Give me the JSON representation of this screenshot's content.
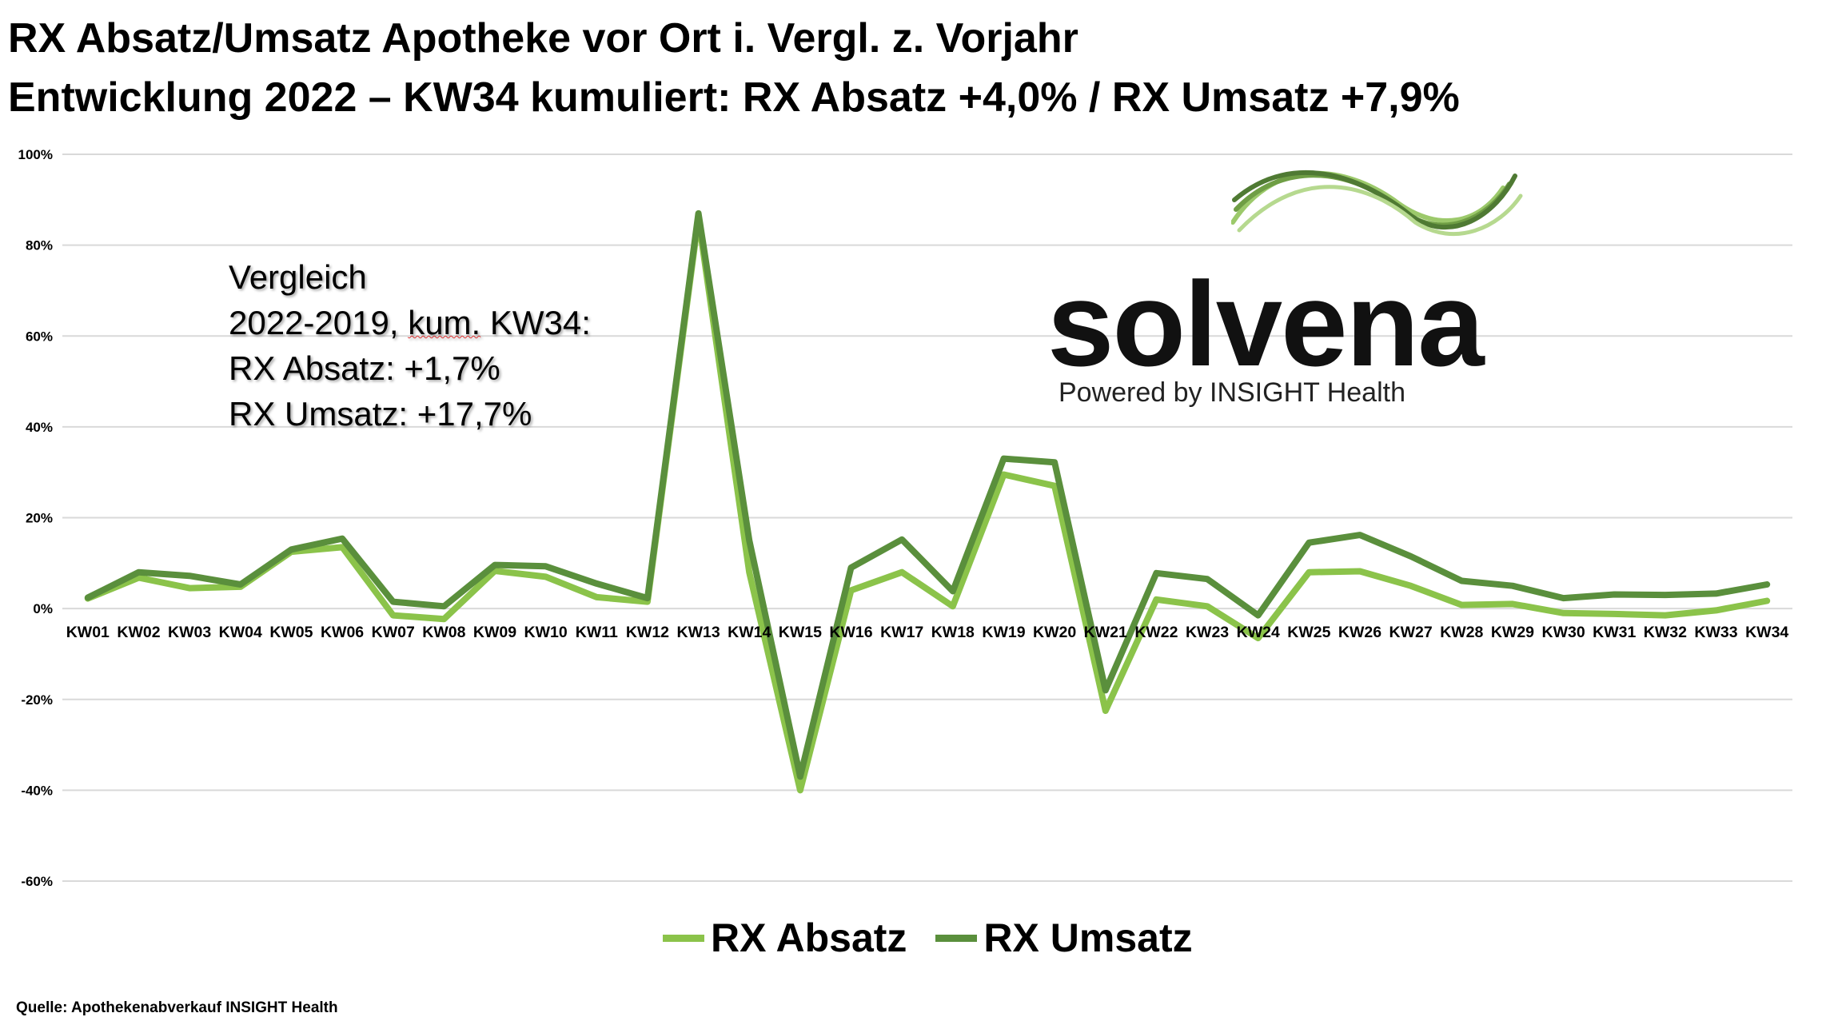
{
  "header": {
    "title_line1": "RX Absatz/Umsatz Apotheke vor Ort i. Vergl. z. Vorjahr",
    "title_line2": "Entwicklung 2022 – KW34 kumuliert: RX Absatz +4,0% / RX Umsatz +7,9%"
  },
  "annotation": {
    "line1": "Vergleich",
    "line2_pre": "2022-2019, ",
    "line2_wavy": "kum.",
    "line2_post": " KW34:",
    "line3": "RX Absatz:   +1,7%",
    "line4": "RX Umsatz: +17,7%"
  },
  "logo": {
    "word": "solvena",
    "sub": "Powered by INSIGHT Health",
    "wave_colors": [
      "#9cc96b",
      "#6f9e45",
      "#4f7a33",
      "#b6d98f"
    ]
  },
  "source": "Quelle: Apothekenabverkauf INSIGHT Health",
  "chart_data": {
    "type": "line",
    "categories": [
      "KW01",
      "KW02",
      "KW03",
      "KW04",
      "KW05",
      "KW06",
      "KW07",
      "KW08",
      "KW09",
      "KW10",
      "KW11",
      "KW12",
      "KW13",
      "KW14",
      "KW15",
      "KW16",
      "KW17",
      "KW18",
      "KW19",
      "KW20",
      "KW21",
      "KW22",
      "KW23",
      "KW24",
      "KW25",
      "KW26",
      "KW27",
      "KW28",
      "KW29",
      "KW30",
      "KW31",
      "KW32",
      "KW33",
      "KW34"
    ],
    "series": [
      {
        "name": "RX Absatz",
        "color": "#8bc34a",
        "values": [
          2.2,
          6.8,
          4.5,
          4.8,
          12.5,
          13.5,
          -1.5,
          -2.3,
          8.3,
          7,
          2.5,
          1.5,
          86,
          8,
          -40,
          4,
          8,
          0.5,
          29.5,
          27,
          -22.5,
          2,
          0.5,
          -6.5,
          8,
          8.2,
          5,
          0.8,
          1,
          -1,
          -1.2,
          -1.5,
          -0.4,
          1.7
        ]
      },
      {
        "name": "RX Umsatz",
        "color": "#5a8f3c",
        "values": [
          2.4,
          8,
          7.2,
          5.3,
          13,
          15.4,
          1.5,
          0.5,
          9.6,
          9.3,
          5.5,
          2.3,
          87,
          15,
          -37,
          9,
          15.2,
          3.8,
          33,
          32.2,
          -18,
          7.8,
          6.5,
          -1.5,
          14.5,
          16.2,
          11.5,
          6.1,
          5,
          2.3,
          3.1,
          3,
          3.3,
          5.3
        ]
      }
    ],
    "y_ticks": [
      "100%",
      "80%",
      "60%",
      "40%",
      "20%",
      "0%",
      "-20%",
      "-40%",
      "-60%"
    ],
    "ylim": [
      -60,
      100
    ],
    "grid": true,
    "legend_position": "bottom-center"
  }
}
